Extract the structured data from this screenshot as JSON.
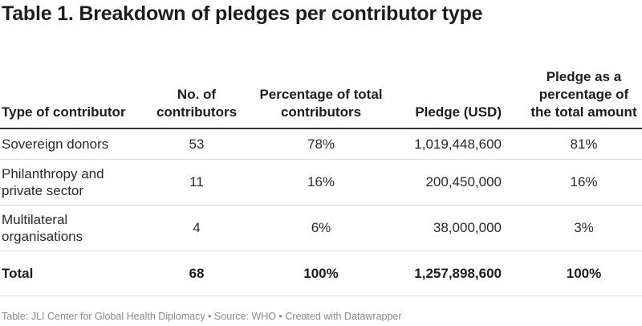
{
  "title": "Table 1. Breakdown of pledges per contributor type",
  "chart_data": {
    "type": "table",
    "title": "Table 1. Breakdown of pledges per contributor type",
    "columns": [
      "Type of contributor",
      "No. of contributors",
      "Percentage of total contributors",
      "Pledge (USD)",
      "Pledge as a percentage of the total amount"
    ],
    "rows": [
      {
        "type": "Sovereign donors",
        "contributors": "53",
        "pct_contributors": "78%",
        "pledge_usd": "1,019,448,600",
        "pct_pledge": "81%"
      },
      {
        "type": "Philanthropy and private sector",
        "contributors": "11",
        "pct_contributors": "16%",
        "pledge_usd": "200,450,000",
        "pct_pledge": "16%"
      },
      {
        "type": "Multilateral organisations",
        "contributors": "4",
        "pct_contributors": "6%",
        "pledge_usd": "38,000,000",
        "pct_pledge": "3%"
      }
    ],
    "total": {
      "type": "Total",
      "contributors": "68",
      "pct_contributors": "100%",
      "pledge_usd": "1,257,898,600",
      "pct_pledge": "100%"
    }
  },
  "footer": {
    "source_line": "Table: JLI Center for Global Health Diplomacy • Source: WHO • Created with Datawrapper"
  }
}
